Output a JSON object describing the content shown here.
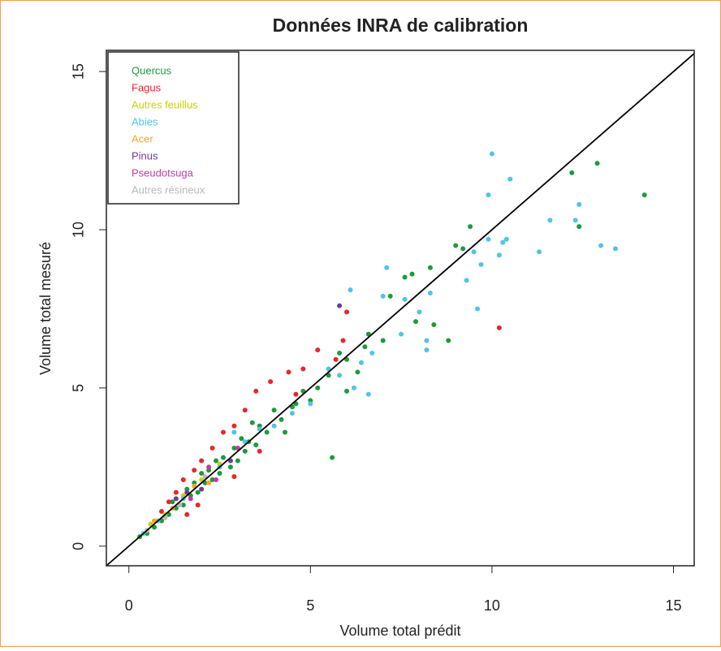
{
  "chart_data": {
    "type": "scatter",
    "title": "Données INRA de calibration",
    "x_label": "Volume total prédit",
    "y_label": "Volume total mesuré",
    "xlim": [
      -0.62,
      15.57
    ],
    "ylim": [
      -0.62,
      15.67
    ],
    "xticks": [
      0,
      5,
      10,
      15
    ],
    "yticks": [
      0,
      5,
      10,
      15
    ],
    "reference_line": {
      "slope": 1,
      "intercept": 0,
      "color": "#000000"
    },
    "legend": "top-left",
    "series": [
      {
        "name": "Quercus",
        "color": "#1e9a3c",
        "x": [
          12.9,
          12.2,
          14.2,
          12.4,
          9.4,
          9.0,
          8.3,
          7.8,
          7.6,
          7.2,
          8.4,
          7.9,
          8.8,
          6.5,
          6.0,
          5.5,
          5.2,
          4.8,
          4.5,
          4.2,
          5.6,
          4.3,
          3.8,
          3.5,
          3.2,
          3.0,
          2.8,
          2.5,
          2.3,
          2.1,
          1.9,
          1.7,
          1.5,
          1.3,
          1.1,
          0.9,
          0.7,
          0.5,
          0.3,
          2.4,
          2.6,
          3.1,
          3.4,
          2.0,
          1.8,
          4.6,
          5.0,
          6.3,
          6.0,
          7.0,
          3.6,
          4.0,
          1.2,
          1.6,
          2.2,
          2.9,
          3.3,
          5.8,
          6.6,
          9.2
        ],
        "y": [
          12.1,
          11.8,
          11.1,
          10.1,
          10.1,
          9.5,
          8.8,
          8.6,
          8.5,
          7.9,
          7.0,
          7.1,
          6.5,
          6.3,
          5.9,
          5.4,
          5.0,
          4.9,
          4.4,
          4.0,
          2.8,
          3.6,
          3.6,
          3.2,
          3.0,
          2.7,
          2.5,
          2.3,
          2.1,
          2.0,
          1.7,
          1.6,
          1.3,
          1.2,
          1.0,
          0.8,
          0.6,
          0.4,
          0.3,
          2.7,
          2.8,
          3.4,
          3.9,
          2.3,
          2.0,
          4.5,
          4.6,
          5.5,
          4.9,
          6.5,
          3.8,
          4.3,
          1.4,
          1.8,
          2.4,
          3.1,
          3.3,
          6.1,
          6.7,
          9.4
        ]
      },
      {
        "name": "Fagus",
        "color": "#e8262a",
        "x": [
          10.2,
          6.0,
          5.9,
          5.2,
          4.8,
          4.4,
          3.9,
          3.5,
          3.2,
          2.9,
          2.6,
          2.3,
          2.0,
          1.8,
          1.5,
          1.3,
          1.1,
          0.9,
          2.9,
          3.6,
          1.6,
          1.9,
          4.6,
          5.7
        ],
        "y": [
          6.9,
          7.4,
          6.5,
          6.2,
          5.6,
          5.5,
          5.2,
          4.9,
          4.3,
          3.8,
          3.6,
          3.1,
          2.7,
          2.4,
          2.1,
          1.7,
          1.4,
          1.1,
          2.2,
          3.0,
          1.0,
          1.3,
          4.8,
          5.9
        ]
      },
      {
        "name": "Autres feuillus",
        "color": "#c8d400",
        "x": [
          1.0,
          1.5,
          2.0,
          2.5,
          0.6
        ],
        "y": [
          1.0,
          1.6,
          2.1,
          2.6,
          0.7
        ]
      },
      {
        "name": "Abies",
        "color": "#4fc3e8",
        "x": [
          10.0,
          10.5,
          9.9,
          12.4,
          12.3,
          11.6,
          10.4,
          9.9,
          10.3,
          13.0,
          13.4,
          11.3,
          10.2,
          9.5,
          9.7,
          9.3,
          7.1,
          8.3,
          7.6,
          7.0,
          6.1,
          8.0,
          7.5,
          8.2,
          8.2,
          9.6,
          6.7,
          6.4,
          5.8,
          5.5,
          6.6,
          6.2,
          5.0,
          4.5,
          4.0,
          3.6,
          3.2,
          2.9,
          2.5,
          1.5,
          0.8,
          0.4
        ],
        "y": [
          12.4,
          11.6,
          11.1,
          10.8,
          10.3,
          10.3,
          9.7,
          9.7,
          9.6,
          9.5,
          9.4,
          9.3,
          9.2,
          9.3,
          8.9,
          8.4,
          8.8,
          8.0,
          7.8,
          7.9,
          8.1,
          7.4,
          6.7,
          6.5,
          6.2,
          7.5,
          6.1,
          5.8,
          5.4,
          5.6,
          4.8,
          5.0,
          4.5,
          4.2,
          3.8,
          3.7,
          3.3,
          3.6,
          2.5,
          1.5,
          0.8,
          0.4
        ]
      },
      {
        "name": "Acer",
        "color": "#f5a623",
        "x": [
          1.2,
          1.8,
          0.7,
          2.2
        ],
        "y": [
          1.2,
          1.9,
          0.8,
          2.0
        ]
      },
      {
        "name": "Pinus",
        "color": "#6a3d9a",
        "x": [
          5.8,
          2.8,
          1.6,
          2.0,
          1.3
        ],
        "y": [
          7.6,
          2.7,
          1.7,
          1.8,
          1.5
        ]
      },
      {
        "name": "Pseudotsuga",
        "color": "#c03aa8",
        "x": [
          2.4,
          1.7,
          3.0,
          2.2
        ],
        "y": [
          2.1,
          1.5,
          3.1,
          2.5
        ]
      },
      {
        "name": "Autres résineux",
        "color": "#b8b8b8",
        "x": [
          1.0,
          1.4,
          0.5,
          2.1
        ],
        "y": [
          0.9,
          1.3,
          0.5,
          2.2
        ]
      }
    ]
  }
}
